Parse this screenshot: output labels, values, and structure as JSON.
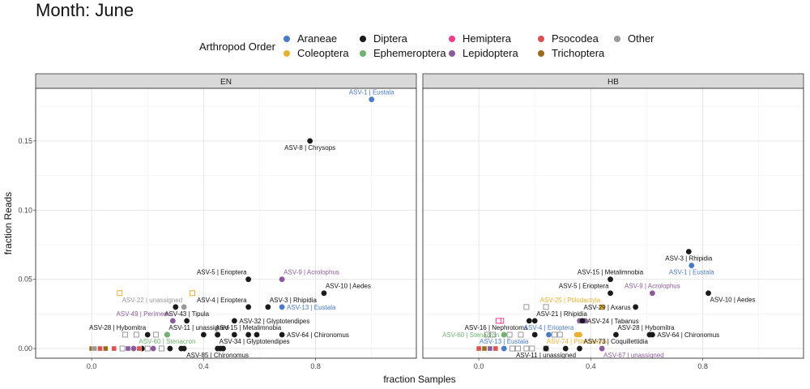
{
  "title": "Month: June",
  "legend": {
    "title": "Arthropod Order",
    "items": [
      {
        "name": "Araneae",
        "color": "#4a7bc4"
      },
      {
        "name": "Coleoptera",
        "color": "#e8b030"
      },
      {
        "name": "Diptera",
        "color": "#1a1a1a"
      },
      {
        "name": "Ephemeroptera",
        "color": "#6eb46e"
      },
      {
        "name": "Hemiptera",
        "color": "#e83e8c"
      },
      {
        "name": "Lepidoptera",
        "color": "#8b5a9a"
      },
      {
        "name": "Psocodea",
        "color": "#d9534f"
      },
      {
        "name": "Trichoptera",
        "color": "#9a6a1a"
      },
      {
        "name": "Other",
        "color": "#999999"
      }
    ]
  },
  "chart_data": {
    "type": "scatter",
    "xlabel": "fraction Samples",
    "ylabel": "fraction Reads",
    "xlim": [
      -0.2,
      1.16
    ],
    "ylim": [
      -0.007,
      0.188
    ],
    "x_ticks": [
      0.0,
      0.4,
      0.8
    ],
    "x_tick_labels": [
      "0.0",
      "0.4",
      "0.8"
    ],
    "y_ticks": [
      0.0,
      0.05,
      0.1,
      0.15
    ],
    "y_tick_labels": [
      "0.00",
      "0.05",
      "0.10",
      "0.15"
    ],
    "grid": true,
    "legend_position": "top",
    "panels": [
      {
        "name": "EN",
        "labeled_points": [
          {
            "label": "ASV-1 | Eustala",
            "x": 1.0,
            "y": 0.18,
            "order": "Araneae",
            "label_pos": "above"
          },
          {
            "label": "ASV-8 | Chrysops",
            "x": 0.78,
            "y": 0.15,
            "order": "Diptera",
            "label_pos": "below"
          },
          {
            "label": "ASV-5 | Eriopterа",
            "x": 0.56,
            "y": 0.05,
            "order": "Diptera",
            "label_pos": "above-left"
          },
          {
            "label": "ASV-9 | Acrolophus",
            "x": 0.68,
            "y": 0.05,
            "order": "Lepidoptera",
            "label_pos": "above-right"
          },
          {
            "label": "ASV-10 | Aedes",
            "x": 0.83,
            "y": 0.04,
            "order": "Diptera",
            "label_pos": "above-right"
          },
          {
            "label": "ASV-3 | Rhipidia",
            "x": 0.63,
            "y": 0.03,
            "order": "Diptera",
            "label_pos": "above-right"
          },
          {
            "label": "ASV-22 | unassigned",
            "x": 0.33,
            "y": 0.03,
            "order": "Other",
            "label_pos": "above-left"
          },
          {
            "label": "ASV-4 | Eriopterа",
            "x": 0.56,
            "y": 0.03,
            "order": "Diptera",
            "label_pos": "above-left"
          },
          {
            "label": "ASV-13 | Eustala",
            "x": 0.68,
            "y": 0.03,
            "order": "Araneae",
            "label_pos": "right"
          },
          {
            "label": "ASV-43 | Tipula",
            "x": 0.34,
            "y": 0.02,
            "order": "Diptera",
            "label_pos": "above"
          },
          {
            "label": "ASV-32 | Glyptotendipes",
            "x": 0.51,
            "y": 0.02,
            "order": "Diptera",
            "label_pos": "right"
          },
          {
            "label": "ASV-49 | Perimede",
            "x": 0.29,
            "y": 0.02,
            "order": "Lepidoptera",
            "label_pos": "above-left"
          },
          {
            "label": "ASV-28 | Hybomitra",
            "x": 0.2,
            "y": 0.01,
            "order": "Diptera",
            "label_pos": "above-left"
          },
          {
            "label": "ASV-11 | unassigned",
            "x": 0.27,
            "y": 0.01,
            "order": "Diptera",
            "label_pos": "above-right"
          },
          {
            "label": "ASV-15 | Metalimnobia",
            "x": 0.56,
            "y": 0.01,
            "order": "Diptera",
            "label_pos": "above"
          },
          {
            "label": "ASV-64 | Chironomus",
            "x": 0.68,
            "y": 0.01,
            "order": "Diptera",
            "label_pos": "right"
          },
          {
            "label": "ASV-60 | Stenacron",
            "x": 0.27,
            "y": 0.01,
            "order": "Ephemeroptera",
            "label_pos": "below"
          },
          {
            "label": "ASV-34 | Glyptotendipes",
            "x": 0.45,
            "y": 0.01,
            "order": "Diptera",
            "label_pos": "below-right"
          },
          {
            "label": "ASV-85 | Chironomus",
            "x": 0.45,
            "y": 0.0,
            "order": "Diptera",
            "label_pos": "below"
          }
        ],
        "extra_points": [
          {
            "x": 0.36,
            "y": 0.04,
            "order": "Coleoptera",
            "hollow": true,
            "square": true
          },
          {
            "x": 0.1,
            "y": 0.04,
            "order": "Coleoptera",
            "hollow": true,
            "square": true
          },
          {
            "x": 0.59,
            "y": 0.01,
            "order": "Diptera"
          },
          {
            "x": 0.51,
            "y": 0.01,
            "order": "Diptera"
          },
          {
            "x": 0.45,
            "y": 0.01,
            "order": "Diptera"
          },
          {
            "x": 0.4,
            "y": 0.01,
            "order": "Diptera"
          },
          {
            "x": 0.3,
            "y": 0.03,
            "order": "Diptera"
          },
          {
            "x": 0.46,
            "y": 0.0,
            "order": "Diptera"
          },
          {
            "x": 0.47,
            "y": 0.0,
            "order": "Diptera"
          },
          {
            "x": 0.33,
            "y": 0.0,
            "order": "Diptera"
          },
          {
            "x": 0.32,
            "y": 0.0,
            "order": "Diptera"
          },
          {
            "x": 0.18,
            "y": 0.0,
            "order": "Diptera"
          },
          {
            "x": 0.22,
            "y": 0.0,
            "order": "Lepidoptera"
          },
          {
            "x": 0.15,
            "y": 0.0,
            "order": "Lepidoptera"
          },
          {
            "x": 0.23,
            "y": 0.01,
            "order": "Other",
            "hollow": true,
            "square": true
          },
          {
            "x": 0.16,
            "y": 0.01,
            "order": "Other",
            "hollow": true,
            "square": true
          },
          {
            "x": 0.12,
            "y": 0.01,
            "order": "Other",
            "hollow": true,
            "square": true
          },
          {
            "x": 0.05,
            "y": 0.0,
            "order": "Trichoptera",
            "square": true
          },
          {
            "x": 0.08,
            "y": 0.0,
            "order": "Psocodea",
            "square": true
          },
          {
            "x": 0.03,
            "y": 0.0,
            "order": "Psocodea",
            "square": true
          },
          {
            "x": 0.0,
            "y": 0.0,
            "order": "Trichoptera",
            "square": true
          },
          {
            "x": 0.11,
            "y": 0.0,
            "order": "Other",
            "hollow": true,
            "square": true
          },
          {
            "x": 0.13,
            "y": 0.0,
            "order": "Lepidoptera",
            "square": true
          },
          {
            "x": 0.17,
            "y": 0.0,
            "order": "Psocodea",
            "square": true
          },
          {
            "x": 0.2,
            "y": 0.0,
            "order": "Other",
            "hollow": true,
            "square": true
          },
          {
            "x": 0.25,
            "y": 0.0,
            "order": "Other",
            "hollow": true,
            "square": true
          },
          {
            "x": 0.28,
            "y": 0.0,
            "order": "Diptera"
          },
          {
            "x": 0.01,
            "y": 0.0,
            "order": "Other",
            "square": true
          }
        ]
      },
      {
        "name": "HB",
        "labeled_points": [
          {
            "label": "ASV-3 | Rhipidia",
            "x": 0.75,
            "y": 0.07,
            "order": "Diptera",
            "label_pos": "below"
          },
          {
            "label": "ASV-1 | Eustala",
            "x": 0.76,
            "y": 0.06,
            "order": "Araneae",
            "label_pos": "below"
          },
          {
            "label": "ASV-15 | Metalimnobia",
            "x": 0.47,
            "y": 0.05,
            "order": "Diptera",
            "label_pos": "above"
          },
          {
            "label": "ASV-9 | Acrolophus",
            "x": 0.62,
            "y": 0.04,
            "order": "Lepidoptera",
            "label_pos": "above"
          },
          {
            "label": "ASV-5 | Eriopterа",
            "x": 0.47,
            "y": 0.04,
            "order": "Diptera",
            "label_pos": "above-left"
          },
          {
            "label": "ASV-10 | Aedes",
            "x": 0.82,
            "y": 0.04,
            "order": "Diptera",
            "label_pos": "below-right"
          },
          {
            "label": "ASV-25 | Ptilodactyla",
            "x": 0.44,
            "y": 0.03,
            "order": "Coleoptera",
            "label_pos": "above-left"
          },
          {
            "label": "ASV-29 | Axarus",
            "x": 0.56,
            "y": 0.03,
            "order": "Diptera",
            "label_pos": "left"
          },
          {
            "label": "ASV-21 | Rhipidia",
            "x": 0.2,
            "y": 0.02,
            "order": "Diptera",
            "label_pos": "above-right"
          },
          {
            "label": "ASV-24 | Tabanus",
            "x": 0.37,
            "y": 0.02,
            "order": "Diptera",
            "label_pos": "right"
          },
          {
            "label": "ASV-16 | Nephrotoma",
            "x": 0.18,
            "y": 0.02,
            "order": "Diptera",
            "label_pos": "below-left"
          },
          {
            "label": "ASV-4 | Eriopterа",
            "x": 0.25,
            "y": 0.01,
            "order": "Araneae",
            "label_pos": "above"
          },
          {
            "label": "ASV-28 | Hybomitra",
            "x": 0.49,
            "y": 0.01,
            "order": "Diptera",
            "label_pos": "above-right"
          },
          {
            "label": "ASV-64 | Chironomus",
            "x": 0.62,
            "y": 0.01,
            "order": "Diptera",
            "label_pos": "right"
          },
          {
            "label": "ASV-60 | Stenacron",
            "x": 0.09,
            "y": 0.01,
            "order": "Ephemeroptera",
            "label_pos": "left"
          },
          {
            "label": "ASV-74 | Ptilodactyla",
            "x": 0.35,
            "y": 0.01,
            "order": "Coleoptera",
            "label_pos": "below"
          },
          {
            "label": "ASV-73 | Coquillettidia",
            "x": 0.61,
            "y": 0.01,
            "order": "Diptera",
            "label_pos": "below-left"
          },
          {
            "label": "ASV-13 | Eustala",
            "x": 0.09,
            "y": 0.0,
            "order": "Araneae",
            "label_pos": "above"
          },
          {
            "label": "ASV-11 | unassigned",
            "x": 0.24,
            "y": 0.0,
            "order": "Diptera",
            "label_pos": "below"
          },
          {
            "label": "ASV-67 | unassigned",
            "x": 0.44,
            "y": 0.0,
            "order": "Lepidoptera",
            "label_pos": "below-right"
          }
        ],
        "extra_points": [
          {
            "x": 0.38,
            "y": 0.02,
            "order": "Lepidoptera"
          },
          {
            "x": 0.36,
            "y": 0.02,
            "order": "Lepidoptera"
          },
          {
            "x": 0.36,
            "y": 0.01,
            "order": "Coleoptera"
          },
          {
            "x": 0.2,
            "y": 0.01,
            "order": "Diptera"
          },
          {
            "x": 0.09,
            "y": 0.01,
            "order": "Ephemeroptera"
          },
          {
            "x": 0.08,
            "y": 0.02,
            "order": "Hemiptera",
            "hollow": true,
            "square": true
          },
          {
            "x": 0.07,
            "y": 0.02,
            "order": "Hemiptera",
            "hollow": true,
            "square": true
          },
          {
            "x": 0.03,
            "y": 0.01,
            "order": "Other",
            "hollow": true,
            "square": true
          },
          {
            "x": 0.05,
            "y": 0.01,
            "order": "Other",
            "hollow": true,
            "square": true
          },
          {
            "x": 0.17,
            "y": 0.03,
            "order": "Other",
            "hollow": true,
            "square": true
          },
          {
            "x": 0.24,
            "y": 0.03,
            "order": "Other",
            "hollow": true,
            "square": true
          },
          {
            "x": 0.27,
            "y": 0.01,
            "order": "Other",
            "hollow": true,
            "square": true
          },
          {
            "x": 0.11,
            "y": 0.01,
            "order": "Other",
            "hollow": true,
            "square": true
          },
          {
            "x": 0.15,
            "y": 0.01,
            "order": "Other",
            "hollow": true,
            "square": true
          },
          {
            "x": 0.29,
            "y": 0.01,
            "order": "Other",
            "hollow": true,
            "square": true
          },
          {
            "x": 0.0,
            "y": 0.0,
            "order": "Psocodea",
            "square": true
          },
          {
            "x": 0.02,
            "y": 0.0,
            "order": "Trichoptera",
            "square": true
          },
          {
            "x": 0.04,
            "y": 0.0,
            "order": "Lepidoptera",
            "square": true
          },
          {
            "x": 0.06,
            "y": 0.0,
            "order": "Psocodea",
            "square": true
          },
          {
            "x": 0.12,
            "y": 0.0,
            "order": "Other",
            "hollow": true,
            "square": true
          },
          {
            "x": 0.14,
            "y": 0.0,
            "order": "Other",
            "hollow": true,
            "square": true
          },
          {
            "x": 0.17,
            "y": 0.0,
            "order": "Other",
            "hollow": true,
            "square": true
          },
          {
            "x": 0.19,
            "y": 0.0,
            "order": "Other",
            "hollow": true,
            "square": true
          },
          {
            "x": 0.24,
            "y": 0.0,
            "order": "Other",
            "hollow": true,
            "square": true
          },
          {
            "x": 0.31,
            "y": 0.0,
            "order": "Diptera"
          },
          {
            "x": 0.36,
            "y": 0.0,
            "order": "Diptera"
          }
        ]
      }
    ]
  }
}
